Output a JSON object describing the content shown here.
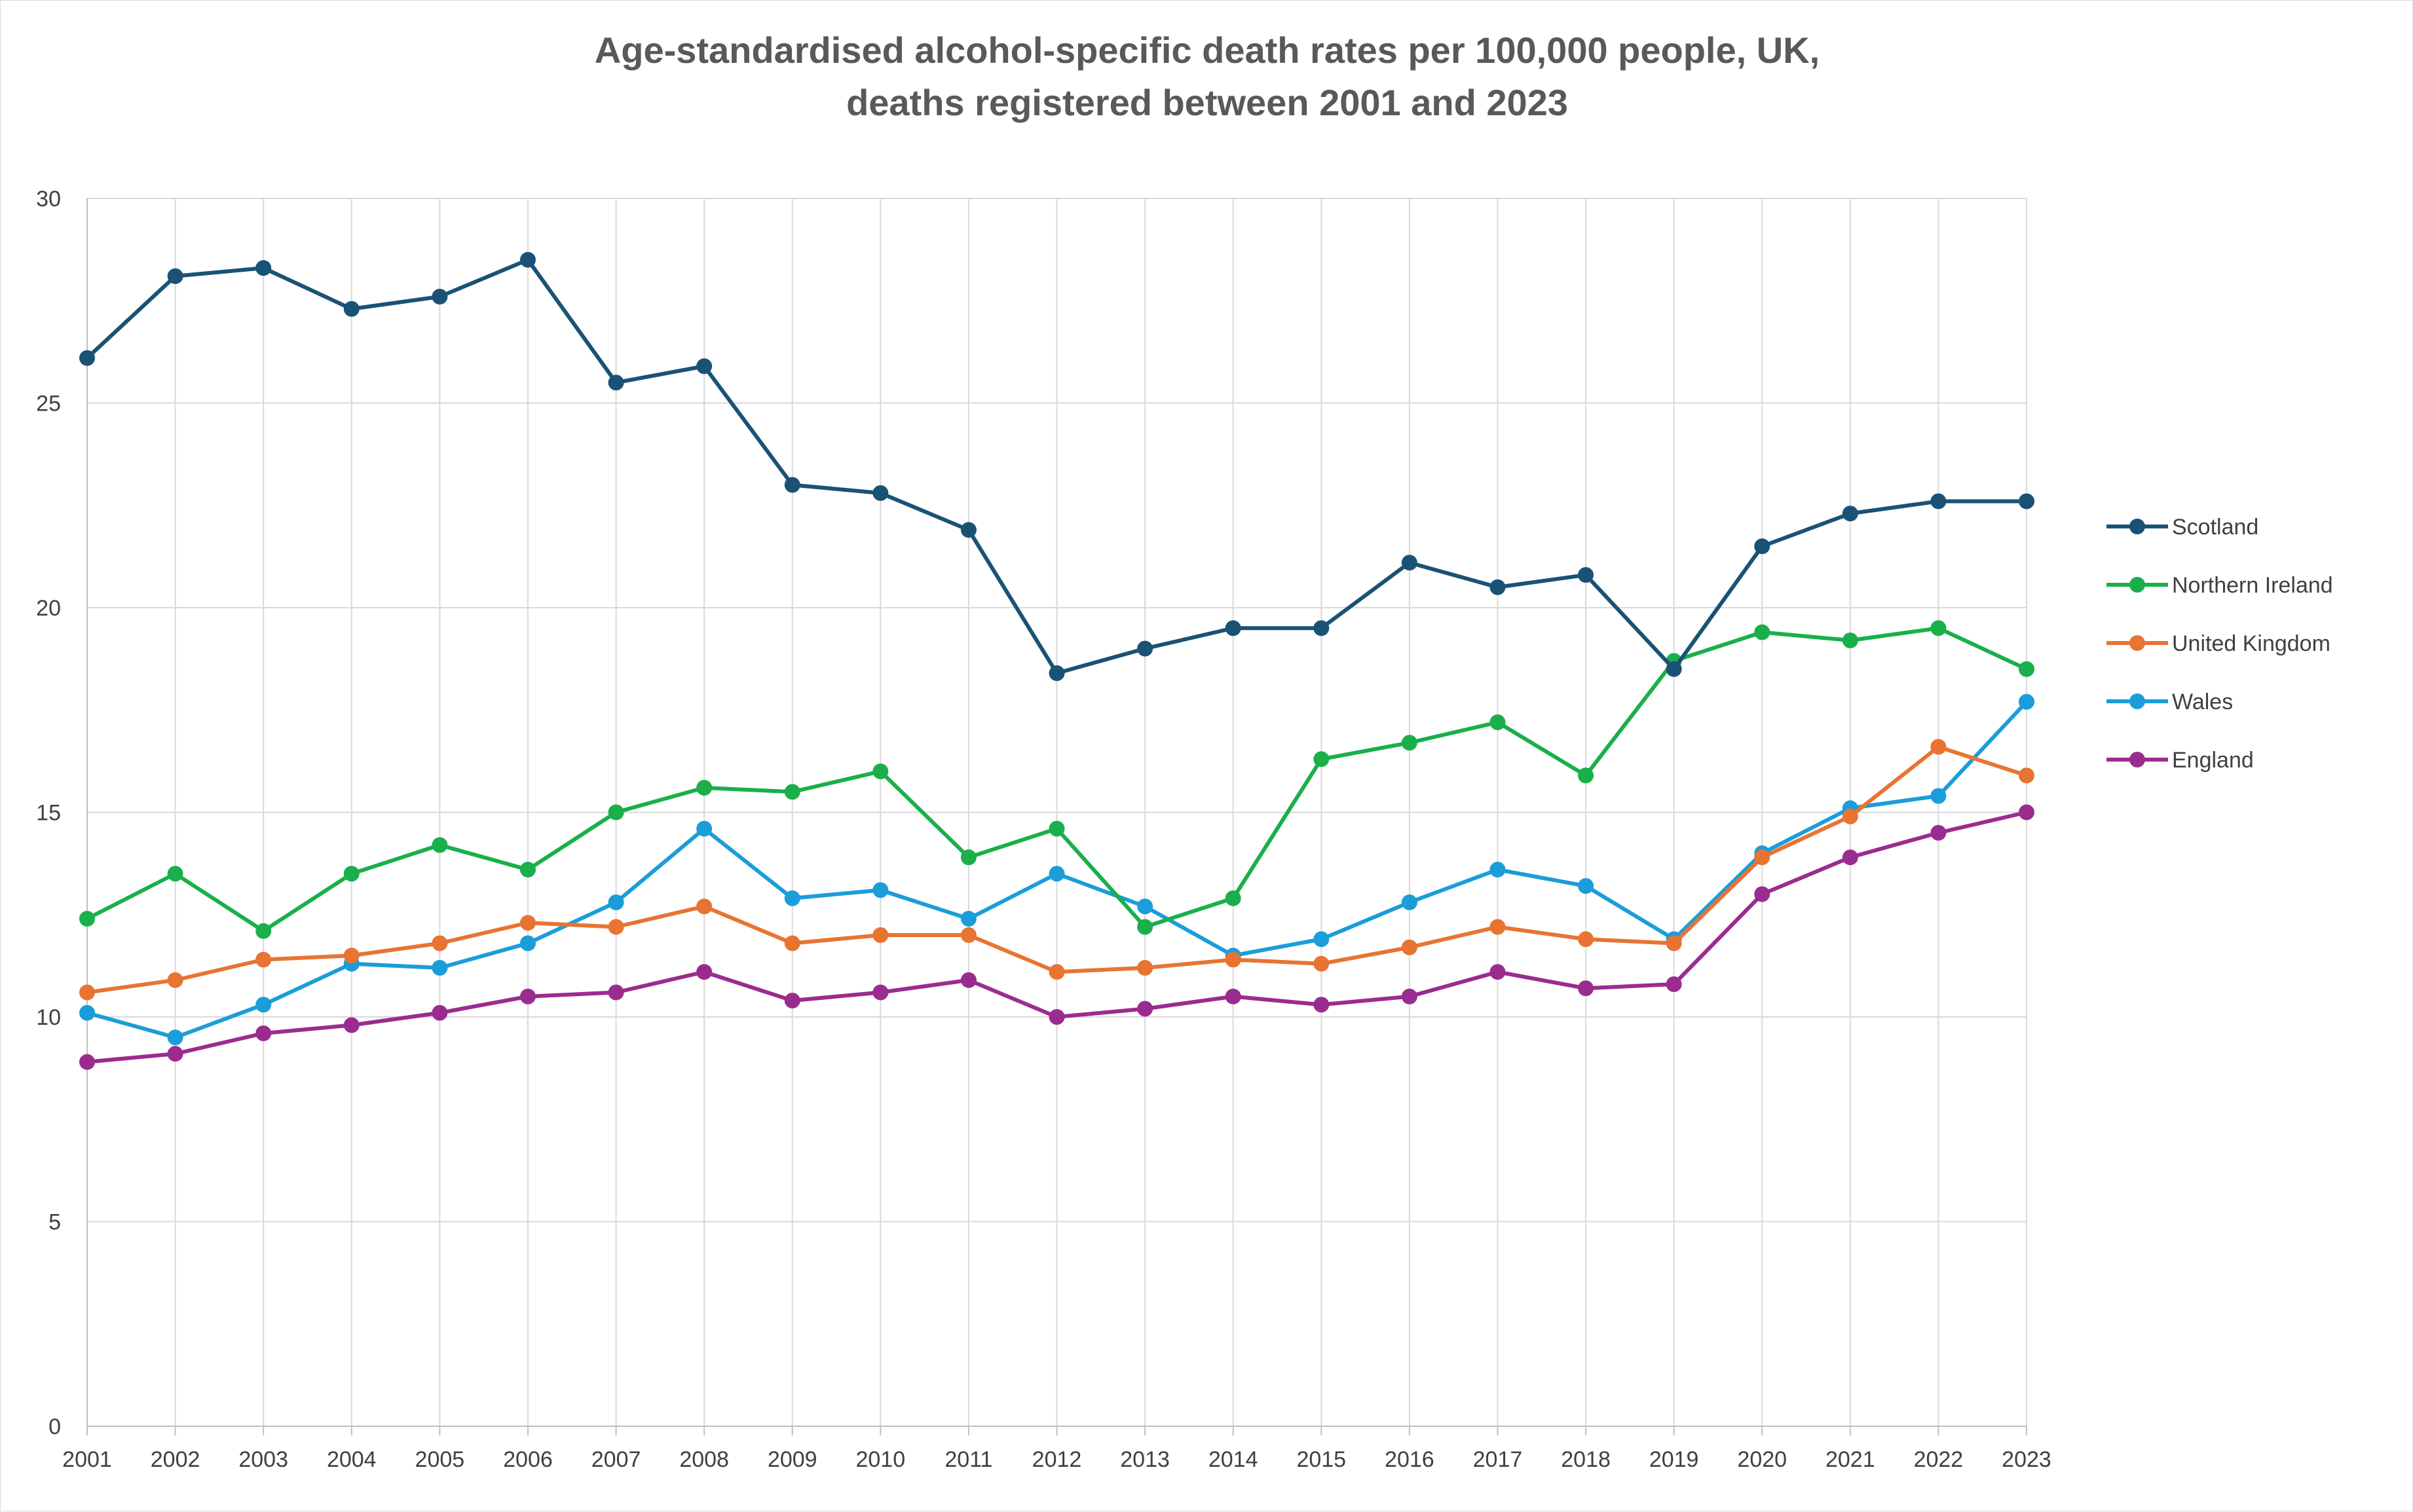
{
  "chart_data": {
    "type": "line",
    "title": "Age-standardised alcohol-specific death rates per 100,000 people, UK,",
    "subtitle": "deaths registered between 2001 and 2023",
    "xlabel": "",
    "ylabel": "",
    "ylim": [
      0,
      30
    ],
    "yticks": [
      0,
      5,
      10,
      15,
      20,
      25,
      30
    ],
    "grid": true,
    "legend_position": "right",
    "categories": [
      "2001",
      "2002",
      "2003",
      "2004",
      "2005",
      "2006",
      "2007",
      "2008",
      "2009",
      "2010",
      "2011",
      "2012",
      "2013",
      "2014",
      "2015",
      "2016",
      "2017",
      "2018",
      "2019",
      "2020",
      "2021",
      "2022",
      "2023"
    ],
    "series": [
      {
        "name": "Scotland",
        "color": "#1a5276",
        "values": [
          26.1,
          28.1,
          28.3,
          27.3,
          27.6,
          28.5,
          25.5,
          25.9,
          23.0,
          22.8,
          21.9,
          18.4,
          19.0,
          19.5,
          19.5,
          21.1,
          20.5,
          20.8,
          18.5,
          21.5,
          22.3,
          22.6,
          22.6
        ]
      },
      {
        "name": "Northern Ireland",
        "color": "#1aaf4b",
        "values": [
          12.4,
          13.5,
          12.1,
          13.5,
          14.2,
          13.6,
          15.0,
          15.6,
          15.5,
          16.0,
          13.9,
          14.6,
          12.2,
          12.9,
          16.3,
          16.7,
          17.2,
          15.9,
          18.7,
          19.4,
          19.2,
          19.5,
          18.5
        ]
      },
      {
        "name": "United Kingdom",
        "color": "#e87432",
        "values": [
          10.6,
          10.9,
          11.4,
          11.5,
          11.8,
          12.3,
          12.2,
          12.7,
          11.8,
          12.0,
          12.0,
          11.1,
          11.2,
          11.4,
          11.3,
          11.7,
          12.2,
          11.9,
          11.8,
          13.9,
          14.9,
          16.6,
          15.9
        ]
      },
      {
        "name": "Wales",
        "color": "#1b9dd9",
        "values": [
          10.1,
          9.5,
          10.3,
          11.3,
          11.2,
          11.8,
          12.8,
          14.6,
          12.9,
          13.1,
          12.4,
          13.5,
          12.7,
          11.5,
          11.9,
          12.8,
          13.6,
          13.2,
          11.9,
          14.0,
          15.1,
          15.4,
          17.7
        ]
      },
      {
        "name": "England",
        "color": "#9b2c8f",
        "values": [
          8.9,
          9.1,
          9.6,
          9.8,
          10.1,
          10.5,
          10.6,
          11.1,
          10.4,
          10.6,
          10.9,
          10.0,
          10.2,
          10.5,
          10.3,
          10.5,
          11.1,
          10.7,
          10.8,
          13.0,
          13.9,
          14.5,
          15.0
        ]
      }
    ]
  }
}
